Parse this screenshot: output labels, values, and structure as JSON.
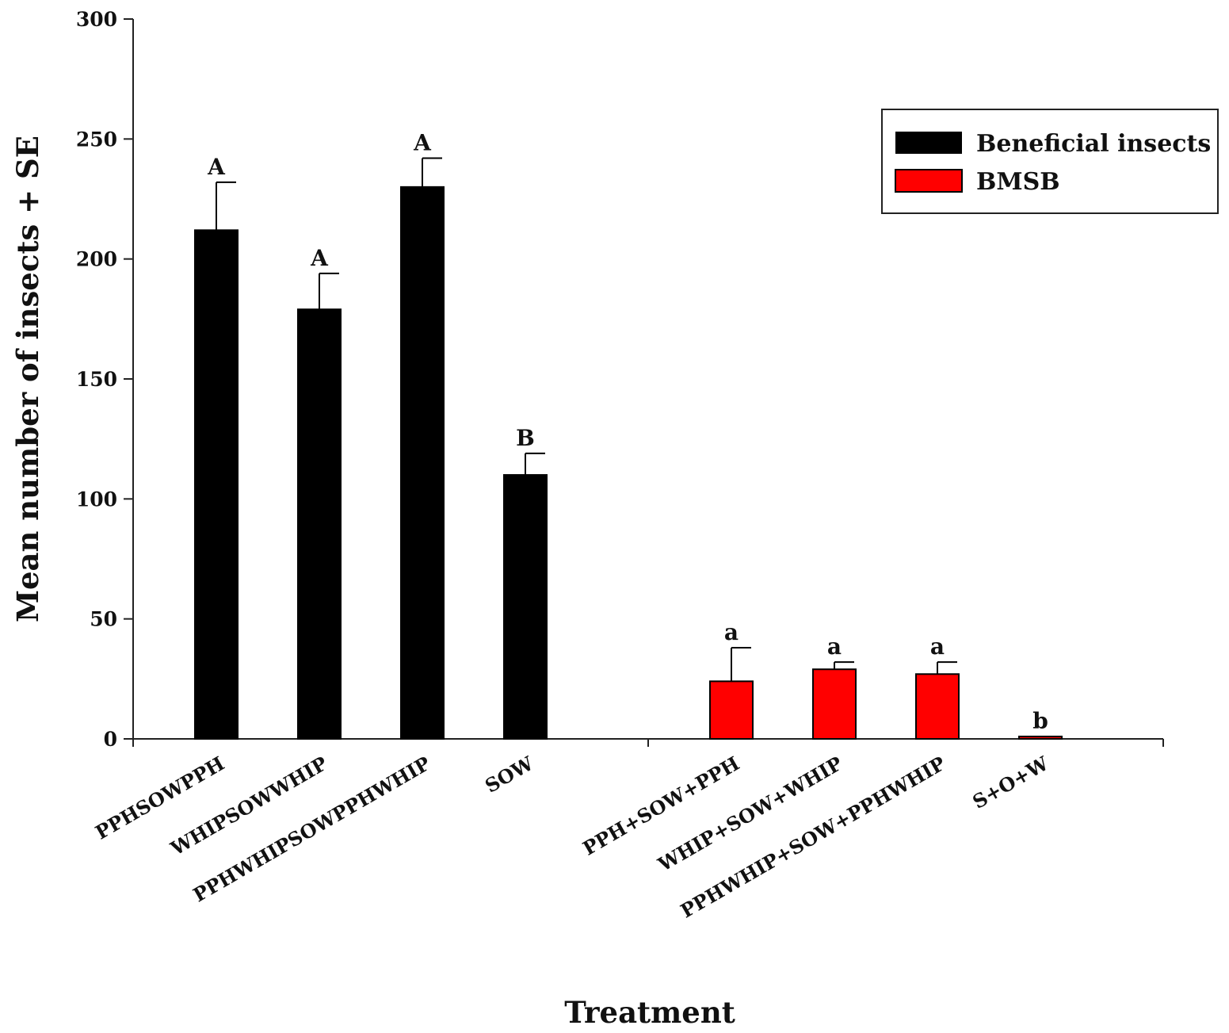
{
  "chart_data": {
    "type": "bar",
    "title": "",
    "xlabel": "Treatment",
    "ylabel": "Mean number of insects + SE",
    "ylim": [
      0,
      300
    ],
    "yticks": [
      0,
      50,
      100,
      150,
      200,
      250,
      300
    ],
    "legend": {
      "placement": "top-right",
      "entries": [
        {
          "name": "Beneficial insects",
          "color": "#000000"
        },
        {
          "name": "BMSB",
          "color": "#ff0000"
        }
      ]
    },
    "groups": [
      {
        "series": "Beneficial insects",
        "color": "#000000",
        "categories": [
          "PPHSOWPPH",
          "WHIPSOWWHIP",
          "PPHWHIPSOWPPHWHIP",
          "SOW"
        ],
        "values": [
          212,
          179,
          230,
          110
        ],
        "errors": [
          20,
          15,
          12,
          9
        ],
        "significance": [
          "A",
          "A",
          "A",
          "B"
        ]
      },
      {
        "series": "BMSB",
        "color": "#ff0000",
        "categories": [
          "PPH+SOW+PPH",
          "WHIP+SOW+WHIP",
          "PPHWHIP+SOW+PPHWHIP",
          "S+O+W"
        ],
        "values": [
          24,
          29,
          27,
          1
        ],
        "errors": [
          14,
          3,
          5,
          0
        ],
        "significance": [
          "a",
          "a",
          "a",
          "b"
        ]
      }
    ]
  }
}
